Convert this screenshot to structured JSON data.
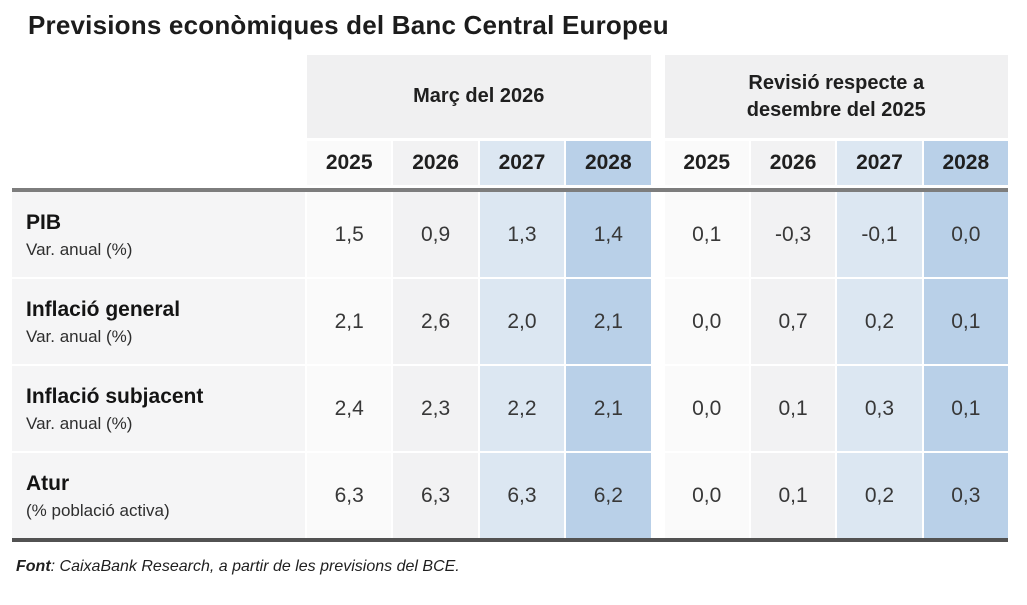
{
  "title": "Previsions econòmiques del Banc Central Europeu",
  "table": {
    "groups": [
      {
        "label": "Març del 2026",
        "years": [
          "2025",
          "2026",
          "2027",
          "2028"
        ]
      },
      {
        "label": "Revisió respecte a desembre del 2025",
        "years": [
          "2025",
          "2026",
          "2027",
          "2028"
        ]
      }
    ],
    "rows": [
      {
        "name": "PIB",
        "unit": "Var. anual (%)",
        "marc": [
          "1,5",
          "0,9",
          "1,3",
          "1,4"
        ],
        "revisio": [
          "0,1",
          "-0,3",
          "-0,1",
          "0,0"
        ]
      },
      {
        "name": "Inflació general",
        "unit": "Var. anual (%)",
        "marc": [
          "2,1",
          "2,6",
          "2,0",
          "2,1"
        ],
        "revisio": [
          "0,0",
          "0,7",
          "0,2",
          "0,1"
        ]
      },
      {
        "name": "Inflació subjacent",
        "unit": "Var. anual (%)",
        "marc": [
          "2,4",
          "2,3",
          "2,2",
          "2,1"
        ],
        "revisio": [
          "0,0",
          "0,1",
          "0,3",
          "0,1"
        ]
      },
      {
        "name": "Atur",
        "unit": "(% població activa)",
        "marc": [
          "6,3",
          "6,3",
          "6,3",
          "6,2"
        ],
        "revisio": [
          "0,0",
          "0,1",
          "0,2",
          "0,3"
        ]
      }
    ]
  },
  "source": {
    "label": "Font",
    "text": ": CaixaBank Research, a partir de les previsions del BCE."
  },
  "colors": {
    "col_2025": "#fafafa",
    "col_2026": "#f2f2f3",
    "col_2027": "#dce7f2",
    "col_2028": "#b9d0e8",
    "label_column": "#f5f5f6",
    "group_header_bg": "#f0f0f1",
    "rule_top": "#7d7d7d",
    "rule_bottom": "#525252"
  },
  "chart_data": {
    "type": "table",
    "title": "Previsions econòmiques del Banc Central Europeu",
    "column_groups": [
      {
        "name": "Març del 2026",
        "columns": [
          "2025",
          "2026",
          "2027",
          "2028"
        ]
      },
      {
        "name": "Revisió respecte a desembre del 2025",
        "columns": [
          "2025",
          "2026",
          "2027",
          "2028"
        ]
      }
    ],
    "rows": [
      {
        "label": "PIB",
        "unit": "Var. anual (%)",
        "marc_del_2026": [
          1.5,
          0.9,
          1.3,
          1.4
        ],
        "revisio": [
          0.1,
          -0.3,
          -0.1,
          0.0
        ]
      },
      {
        "label": "Inflació general",
        "unit": "Var. anual (%)",
        "marc_del_2026": [
          2.1,
          2.6,
          2.0,
          2.1
        ],
        "revisio": [
          0.0,
          0.7,
          0.2,
          0.1
        ]
      },
      {
        "label": "Inflació subjacent",
        "unit": "Var. anual (%)",
        "marc_del_2026": [
          2.4,
          2.3,
          2.2,
          2.1
        ],
        "revisio": [
          0.0,
          0.1,
          0.3,
          0.1
        ]
      },
      {
        "label": "Atur",
        "unit": "(% població activa)",
        "marc_del_2026": [
          6.3,
          6.3,
          6.3,
          6.2
        ],
        "revisio": [
          0.0,
          0.1,
          0.2,
          0.3
        ]
      }
    ],
    "source": "Font: CaixaBank Research, a partir de les previsions del BCE."
  }
}
